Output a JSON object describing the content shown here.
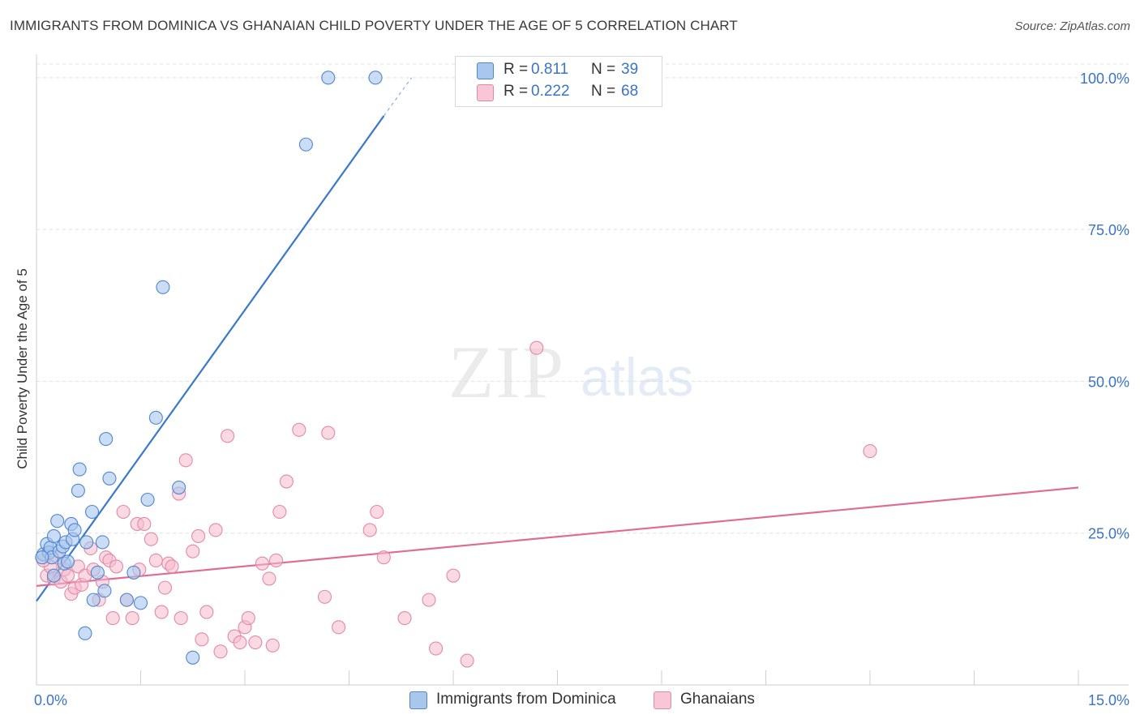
{
  "header": {
    "title": "IMMIGRANTS FROM DOMINICA VS GHANAIAN CHILD POVERTY UNDER THE AGE OF 5 CORRELATION CHART",
    "source": "Source: ZipAtlas.com"
  },
  "watermark": {
    "zip": "ZIP",
    "atlas": "atlas"
  },
  "legend": {
    "series": [
      {
        "r_label": "R =",
        "r_value": "0.811",
        "n_label": "N =",
        "n_value": "39"
      },
      {
        "r_label": "R =",
        "r_value": "0.222",
        "n_label": "N =",
        "n_value": "68"
      }
    ]
  },
  "colors": {
    "blue_fill": "#a9c6ec",
    "blue_stroke": "#4f86cf",
    "blue_line": "#3a78cc",
    "pink_fill": "#f5b9cc",
    "pink_stroke": "#e289a8",
    "pink_line": "#e06b95",
    "accent_text": "#3a74c6",
    "grid": "#e0e0e0"
  },
  "chart_data": {
    "type": "scatter",
    "title": "IMMIGRANTS FROM DOMINICA VS GHANAIAN CHILD POVERTY UNDER THE AGE OF 5 CORRELATION CHART",
    "xlabel": "",
    "ylabel": "Child Poverty Under the Age of 5",
    "xlim": [
      0,
      15
    ],
    "ylim": [
      0,
      100
    ],
    "x_tick_labels": {
      "min": "0.0%",
      "max": "15.0%"
    },
    "y_ticks": [
      25,
      50,
      75,
      100
    ],
    "y_tick_labels": [
      "25.0%",
      "50.0%",
      "75.0%",
      "100.0%"
    ],
    "grid": true,
    "series": [
      {
        "name": "Immigrants from Dominica",
        "r": 0.811,
        "n": 39,
        "trend": {
          "x": [
            0,
            5
          ],
          "y": [
            13.8,
            93.7
          ],
          "dash_to_x": 5.4,
          "dash_to_y": 100
        },
        "points": [
          [
            0.1,
            21.5
          ],
          [
            0.15,
            23.2
          ],
          [
            0.18,
            21.8
          ],
          [
            0.2,
            22.6
          ],
          [
            0.22,
            21.0
          ],
          [
            0.25,
            24.5
          ],
          [
            0.25,
            18.0
          ],
          [
            0.3,
            27.0
          ],
          [
            0.33,
            22.0
          ],
          [
            0.38,
            22.8
          ],
          [
            0.4,
            20.0
          ],
          [
            0.42,
            23.5
          ],
          [
            0.45,
            20.3
          ],
          [
            0.5,
            26.5
          ],
          [
            0.52,
            24.0
          ],
          [
            0.55,
            25.5
          ],
          [
            0.6,
            32.0
          ],
          [
            0.62,
            35.5
          ],
          [
            0.7,
            8.5
          ],
          [
            0.72,
            23.5
          ],
          [
            0.8,
            28.5
          ],
          [
            0.82,
            14.0
          ],
          [
            0.88,
            18.5
          ],
          [
            0.95,
            23.5
          ],
          [
            0.98,
            15.5
          ],
          [
            1.0,
            40.5
          ],
          [
            1.05,
            34.0
          ],
          [
            1.3,
            14.0
          ],
          [
            1.4,
            18.5
          ],
          [
            1.5,
            13.5
          ],
          [
            1.6,
            30.5
          ],
          [
            1.72,
            44.0
          ],
          [
            1.82,
            65.5
          ],
          [
            2.05,
            32.5
          ],
          [
            2.25,
            4.5
          ],
          [
            3.88,
            89.0
          ],
          [
            4.2,
            100.0
          ],
          [
            4.88,
            100.0
          ],
          [
            0.08,
            21.0
          ]
        ]
      },
      {
        "name": "Ghanaians",
        "r": 0.222,
        "n": 68,
        "trend": {
          "x": [
            0,
            15
          ],
          "y": [
            16.3,
            32.5
          ]
        },
        "points": [
          [
            0.15,
            18.0
          ],
          [
            0.2,
            19.5
          ],
          [
            0.25,
            17.5
          ],
          [
            0.3,
            21.0
          ],
          [
            0.35,
            17.0
          ],
          [
            0.4,
            19.0
          ],
          [
            0.45,
            18.0
          ],
          [
            0.5,
            15.0
          ],
          [
            0.55,
            16.0
          ],
          [
            0.6,
            19.5
          ],
          [
            0.65,
            16.5
          ],
          [
            0.7,
            18.0
          ],
          [
            0.78,
            22.5
          ],
          [
            0.82,
            19.0
          ],
          [
            0.9,
            14.0
          ],
          [
            0.95,
            17.0
          ],
          [
            1.0,
            21.0
          ],
          [
            1.05,
            20.5
          ],
          [
            1.1,
            11.0
          ],
          [
            1.15,
            19.5
          ],
          [
            1.25,
            28.5
          ],
          [
            1.3,
            14.0
          ],
          [
            1.38,
            11.0
          ],
          [
            1.45,
            26.5
          ],
          [
            1.48,
            19.0
          ],
          [
            1.55,
            26.5
          ],
          [
            1.65,
            24.0
          ],
          [
            1.72,
            20.5
          ],
          [
            1.8,
            12.0
          ],
          [
            1.85,
            16.0
          ],
          [
            1.9,
            20.0
          ],
          [
            1.95,
            19.5
          ],
          [
            2.05,
            31.5
          ],
          [
            2.08,
            11.0
          ],
          [
            2.15,
            37.0
          ],
          [
            2.25,
            22.0
          ],
          [
            2.33,
            24.5
          ],
          [
            2.38,
            7.5
          ],
          [
            2.45,
            12.0
          ],
          [
            2.58,
            25.5
          ],
          [
            2.65,
            5.5
          ],
          [
            2.75,
            41.0
          ],
          [
            2.85,
            8.0
          ],
          [
            2.93,
            7.0
          ],
          [
            3.0,
            9.5
          ],
          [
            3.05,
            11.0
          ],
          [
            3.15,
            7.0
          ],
          [
            3.25,
            20.0
          ],
          [
            3.35,
            17.5
          ],
          [
            3.4,
            6.5
          ],
          [
            3.45,
            20.5
          ],
          [
            3.5,
            28.5
          ],
          [
            3.6,
            33.5
          ],
          [
            3.78,
            42.0
          ],
          [
            4.15,
            14.5
          ],
          [
            4.2,
            41.5
          ],
          [
            4.35,
            9.5
          ],
          [
            4.8,
            25.5
          ],
          [
            4.9,
            28.5
          ],
          [
            5.0,
            21.0
          ],
          [
            5.3,
            11.0
          ],
          [
            5.65,
            14.0
          ],
          [
            5.75,
            6.0
          ],
          [
            6.0,
            18.0
          ],
          [
            6.2,
            4.0
          ],
          [
            7.2,
            55.5
          ],
          [
            12.0,
            38.5
          ],
          [
            0.1,
            20.5
          ]
        ]
      }
    ]
  }
}
